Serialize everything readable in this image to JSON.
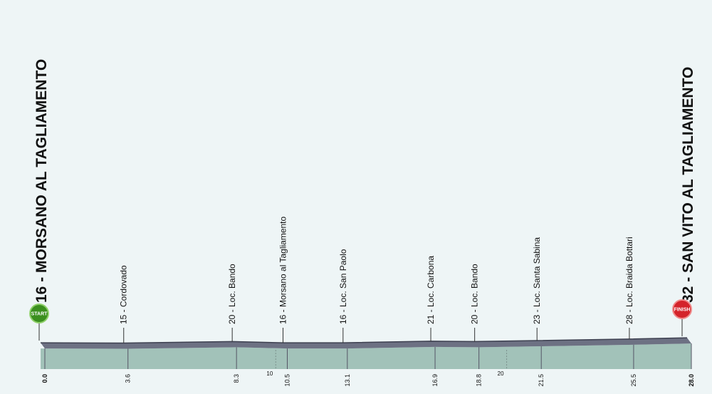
{
  "chart_data": {
    "type": "profile",
    "start_label": "START",
    "finish_label": "FINISH",
    "labels": [
      "16 - MORSANO AL TAGLIAMENTO",
      "15 - Cordovado",
      "20 - Loc. Bando",
      "16 - Morsano al Tagliamento",
      "16 - Loc. San Paolo",
      "21 - Loc. Carbona",
      "20 - Loc. Bando",
      "23 - Loc. Santa Sabina",
      "28 - Loc. Braida Bottari",
      "32 - SAN VITO AL TAGLIAMENTO"
    ],
    "x": [
      0,
      3.6,
      8.3,
      10.5,
      13.1,
      16.9,
      18.8,
      21.5,
      25.5,
      28
    ],
    "values": [
      16,
      15,
      20,
      16,
      16,
      21,
      20,
      23,
      28,
      32
    ],
    "xlim": [
      0,
      28
    ],
    "ylim": [
      -68,
      1020
    ],
    "xticks": [
      {
        "value": 0,
        "label": "0.0"
      },
      3.6,
      8.3,
      10.5,
      13.1,
      16.9,
      18.8,
      21.5,
      25.5,
      {
        "value": 28,
        "label": "28.0"
      }
    ],
    "minor_xticks": [
      10,
      20
    ],
    "color": "#a2c2b9",
    "edge_color": "#6d7183"
  }
}
